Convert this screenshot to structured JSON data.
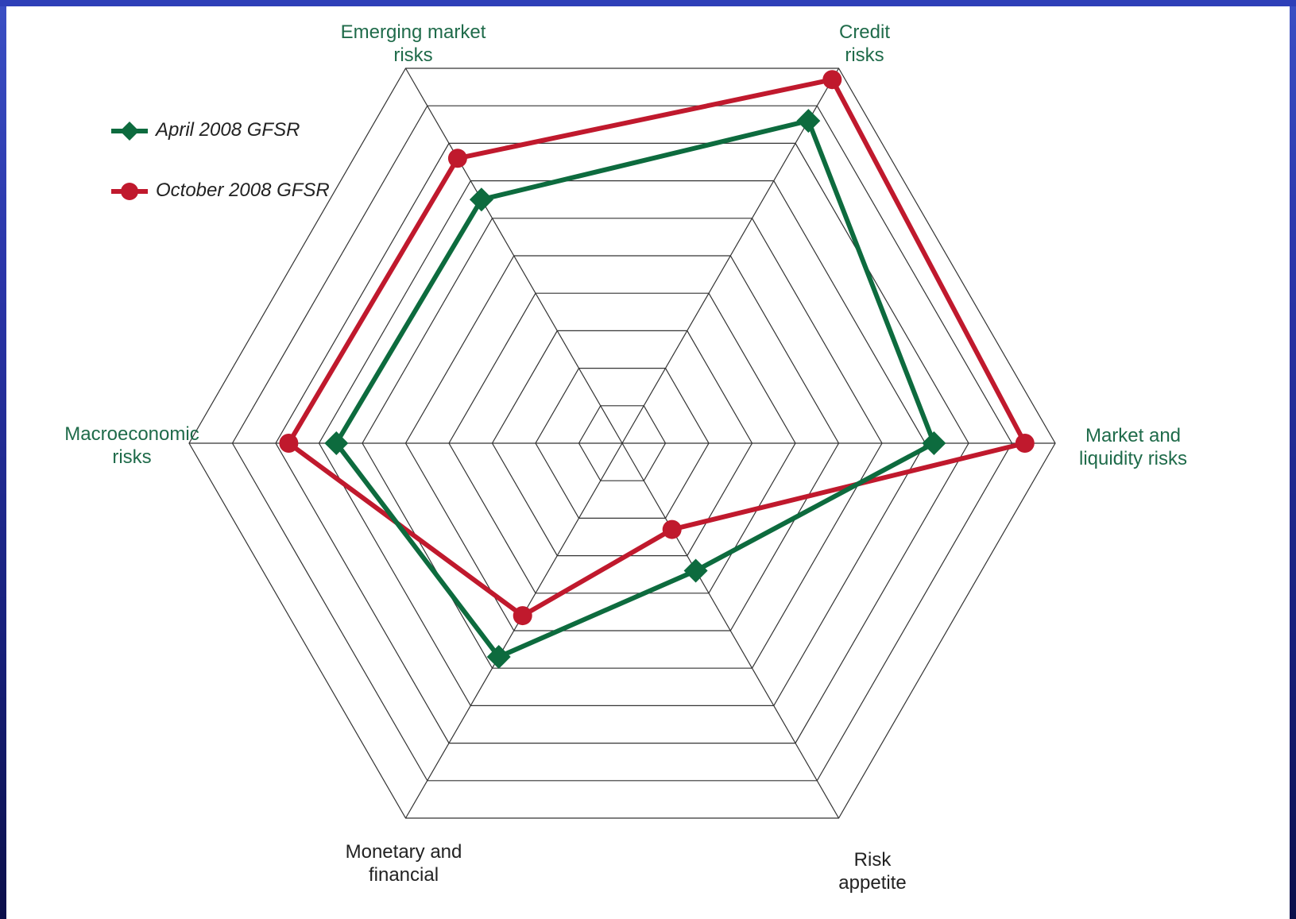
{
  "chart_data": {
    "type": "radar",
    "axes": [
      "Emerging market\nrisks",
      "Credit\nrisks",
      "Market and\nliquidity risks",
      "Risk\nappetite",
      "Monetary and\nfinancial",
      "Macroeconomic\nrisks"
    ],
    "rings": 10,
    "range": [
      0,
      10
    ],
    "grid": true,
    "legend_position": "top-left",
    "series": [
      {
        "name": "April 2008 GFSR",
        "color": "#0d6b3e",
        "marker": "diamond",
        "values": [
          6.5,
          8.6,
          7.2,
          3.4,
          5.7,
          6.6
        ]
      },
      {
        "name": "October 2008 GFSR",
        "color": "#c0192d",
        "marker": "circle",
        "values": [
          7.6,
          9.7,
          9.3,
          2.3,
          4.6,
          7.7
        ]
      }
    ]
  }
}
